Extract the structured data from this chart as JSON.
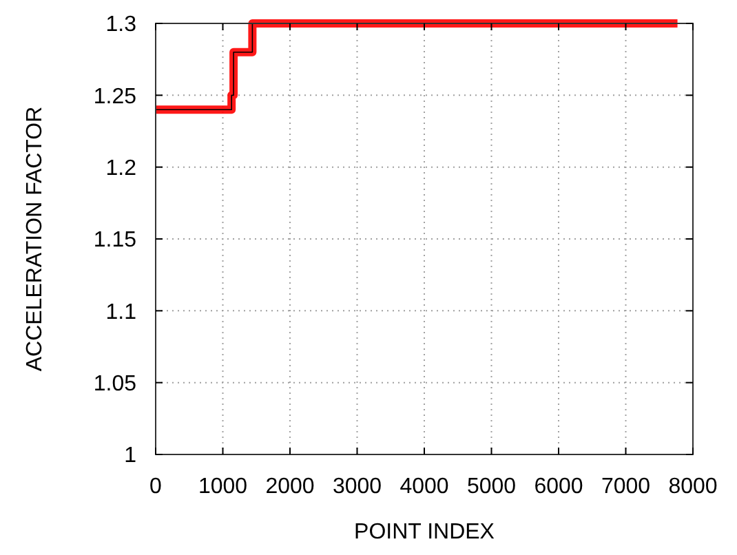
{
  "chart_data": {
    "type": "step",
    "xlabel": "POINT INDEX",
    "ylabel": "ACCELERATION FACTOR",
    "x": [
      0,
      1130,
      1160,
      1440,
      7770
    ],
    "series": [
      {
        "color": "#ff0000",
        "values": [
          1.24,
          1.25,
          1.28,
          1.3,
          1.3
        ]
      }
    ],
    "xlim": [
      0,
      8000
    ],
    "xticks": [
      0,
      1000,
      2000,
      3000,
      4000,
      5000,
      6000,
      7000,
      8000
    ],
    "ylim": [
      1,
      1.3
    ],
    "yticks": [
      1,
      1.05,
      1.1,
      1.15,
      1.2,
      1.25,
      1.3
    ],
    "grid": true,
    "line_style": "solid"
  }
}
